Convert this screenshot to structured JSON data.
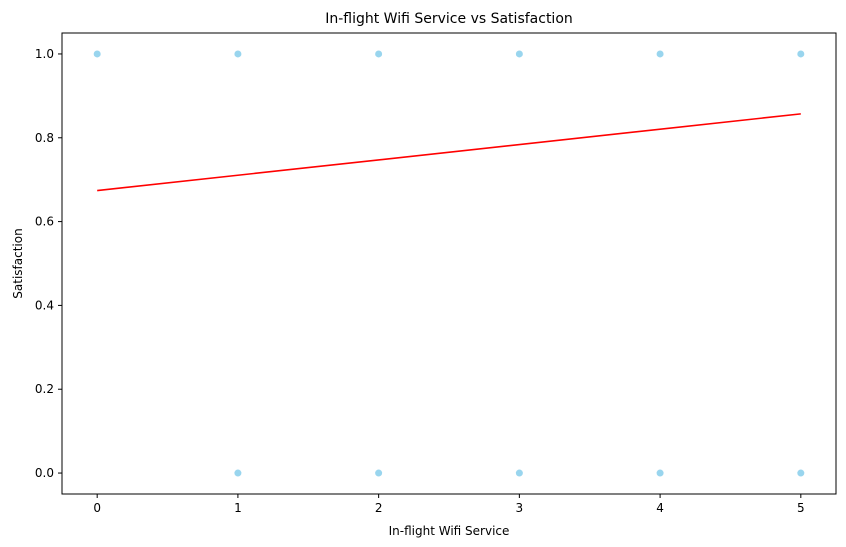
{
  "chart_data": {
    "type": "scatter",
    "title": "In-flight Wifi Service vs Satisfaction",
    "xlabel": "In-flight Wifi Service",
    "ylabel": "Satisfaction",
    "xlim": [
      -0.25,
      5.25
    ],
    "ylim": [
      -0.05,
      1.05
    ],
    "xticks": [
      0,
      1,
      2,
      3,
      4,
      5
    ],
    "yticks": [
      0.0,
      0.2,
      0.4,
      0.6,
      0.8,
      1.0
    ],
    "ytick_labels": [
      "0.0",
      "0.2",
      "0.4",
      "0.6",
      "0.8",
      "1.0"
    ],
    "grid": false,
    "points": [
      {
        "x": 0,
        "y": 1
      },
      {
        "x": 1,
        "y": 1
      },
      {
        "x": 2,
        "y": 1
      },
      {
        "x": 3,
        "y": 1
      },
      {
        "x": 4,
        "y": 1
      },
      {
        "x": 5,
        "y": 1
      },
      {
        "x": 1,
        "y": 0
      },
      {
        "x": 2,
        "y": 0
      },
      {
        "x": 3,
        "y": 0
      },
      {
        "x": 4,
        "y": 0
      },
      {
        "x": 5,
        "y": 0
      }
    ],
    "trendline": {
      "x": [
        0,
        5
      ],
      "y": [
        0.674,
        0.857
      ]
    },
    "colors": {
      "points": "#87ceeb",
      "trendline": "#ff0000"
    }
  }
}
